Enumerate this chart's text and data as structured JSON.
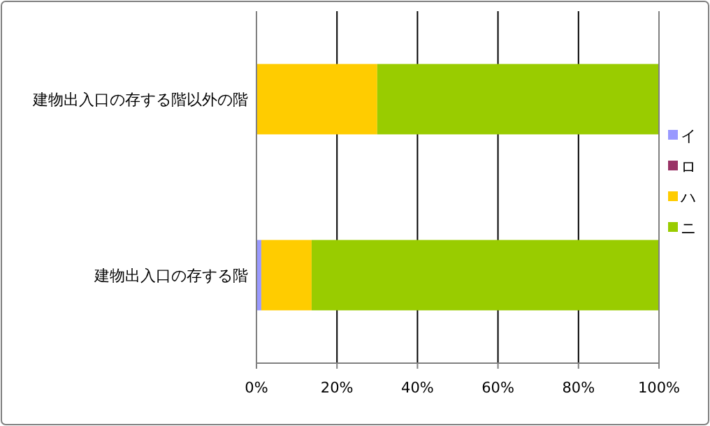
{
  "chart_data": {
    "type": "bar",
    "orientation": "horizontal",
    "stacked": true,
    "categories": [
      "建物出入口の存する階以外の階",
      "建物出入口の存する階"
    ],
    "series": [
      {
        "name": "イ",
        "color": "#9999ff",
        "values": [
          0,
          1.2
        ]
      },
      {
        "name": "ロ",
        "color": "#993366",
        "values": [
          0,
          0
        ]
      },
      {
        "name": "ハ",
        "color": "#ffcc00",
        "values": [
          30,
          12.5
        ]
      },
      {
        "name": "ニ",
        "color": "#99cc00",
        "values": [
          70,
          86.3
        ]
      }
    ],
    "xlim": [
      0,
      100
    ],
    "xticks": [
      {
        "value": 0,
        "label": "0%"
      },
      {
        "value": 20,
        "label": "20%"
      },
      {
        "value": 40,
        "label": "40%"
      },
      {
        "value": 60,
        "label": "60%"
      },
      {
        "value": 80,
        "label": "80%"
      },
      {
        "value": 100,
        "label": "100%"
      }
    ],
    "grid": "x",
    "legend": "right"
  }
}
